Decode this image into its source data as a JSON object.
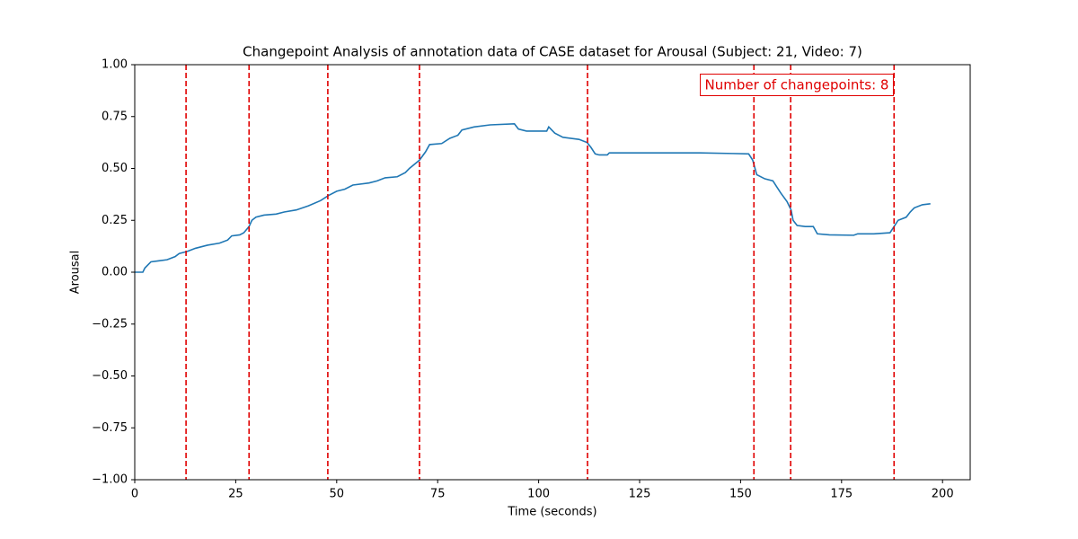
{
  "chart_data": {
    "type": "line",
    "title": "Changepoint Analysis of annotation data of CASE dataset for Arousal (Subject: 21, Video: 7)",
    "xlabel": "Time (seconds)",
    "ylabel": "Arousal",
    "annotation": "Number of changepoints: 8",
    "color": "#1f77b4",
    "changepoint_color": "#e00000",
    "x": [
      0,
      2,
      2.5,
      4,
      6,
      8,
      10,
      11,
      13,
      15,
      18,
      21,
      23,
      24,
      26,
      27,
      28.3,
      29,
      30,
      32,
      35,
      37,
      40,
      43,
      46,
      48,
      50,
      52,
      54,
      58,
      60,
      62,
      65,
      67,
      68,
      70.5,
      72,
      73,
      76,
      78,
      80,
      81,
      84,
      88,
      94,
      95,
      97,
      100,
      102,
      102.5,
      104,
      106,
      110,
      112,
      113,
      114,
      115,
      117,
      117.5,
      125,
      140,
      148,
      152,
      153,
      154,
      156,
      158,
      159,
      160,
      161.5,
      162.5,
      163,
      164,
      166,
      168,
      169,
      172,
      178,
      179,
      183,
      187,
      188,
      189,
      191,
      192,
      193,
      195,
      197
    ],
    "values": [
      0,
      0,
      0.02,
      0.05,
      0.055,
      0.06,
      0.075,
      0.09,
      0.1,
      0.115,
      0.13,
      0.14,
      0.155,
      0.175,
      0.18,
      0.19,
      0.22,
      0.25,
      0.265,
      0.275,
      0.28,
      0.29,
      0.3,
      0.32,
      0.345,
      0.37,
      0.39,
      0.4,
      0.42,
      0.43,
      0.44,
      0.455,
      0.46,
      0.48,
      0.5,
      0.54,
      0.58,
      0.615,
      0.62,
      0.645,
      0.66,
      0.685,
      0.7,
      0.71,
      0.715,
      0.69,
      0.68,
      0.68,
      0.68,
      0.7,
      0.67,
      0.65,
      0.64,
      0.625,
      0.6,
      0.57,
      0.565,
      0.565,
      0.575,
      0.575,
      0.575,
      0.572,
      0.57,
      0.54,
      0.47,
      0.45,
      0.44,
      0.41,
      0.38,
      0.34,
      0.3,
      0.25,
      0.225,
      0.22,
      0.22,
      0.185,
      0.18,
      0.178,
      0.185,
      0.185,
      0.19,
      0.22,
      0.25,
      0.265,
      0.29,
      0.31,
      0.325,
      0.33
    ],
    "changepoints": [
      12.7,
      28.3,
      47.8,
      70.5,
      112.1,
      153.3,
      162.4,
      188.0
    ],
    "xlim": [
      0,
      206.85
    ],
    "ylim": [
      -1,
      1
    ],
    "xticks": [
      0,
      25,
      50,
      75,
      100,
      125,
      150,
      175,
      200
    ],
    "yticks": [
      {
        "value": -1,
        "label": "−1.00"
      },
      {
        "value": -0.75,
        "label": "−0.75"
      },
      {
        "value": -0.5,
        "label": "−0.50"
      },
      {
        "value": -0.25,
        "label": "−0.25"
      },
      {
        "value": 0,
        "label": "0.00"
      },
      {
        "value": 0.25,
        "label": "0.25"
      },
      {
        "value": 0.5,
        "label": "0.50"
      },
      {
        "value": 0.75,
        "label": "0.75"
      },
      {
        "value": 1,
        "label": "1.00"
      }
    ]
  }
}
